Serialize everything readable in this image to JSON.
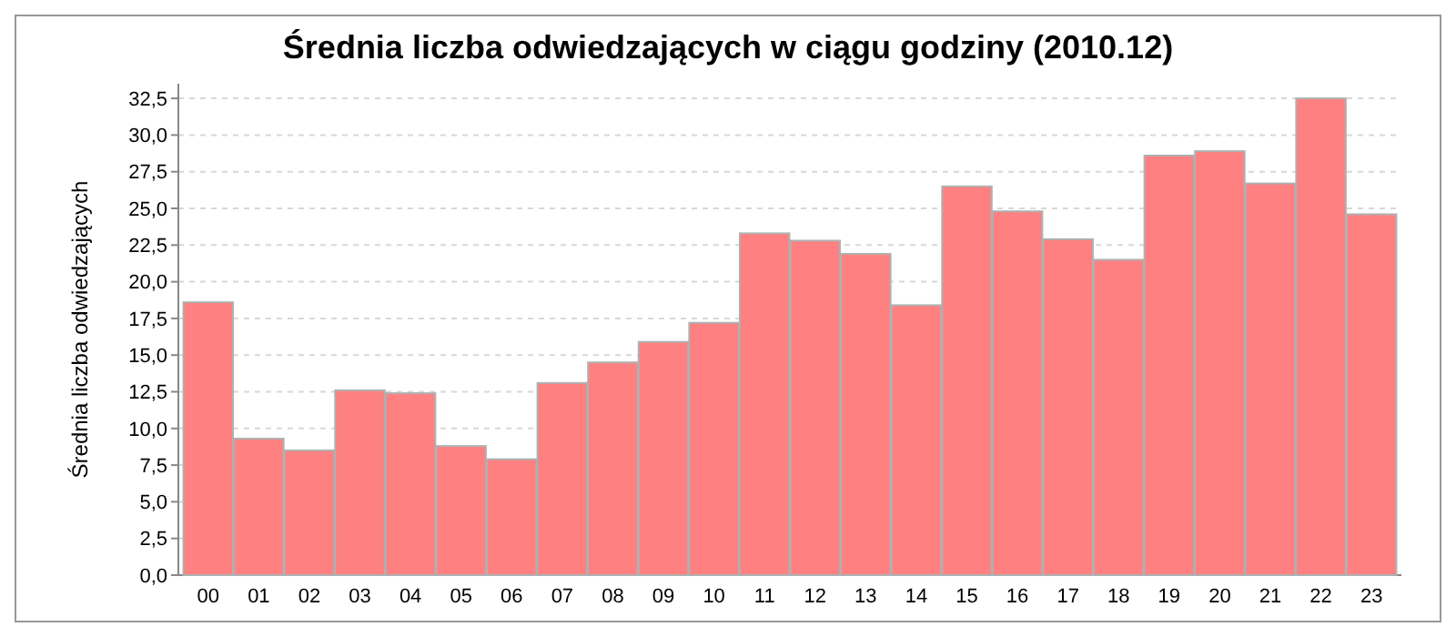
{
  "chart_data": {
    "type": "bar",
    "title": "Średnia liczba odwiedzających w ciągu godziny (2010.12)",
    "ylabel": "Średnia liczba odwiedzających",
    "categories": [
      "00",
      "01",
      "02",
      "03",
      "04",
      "05",
      "06",
      "07",
      "08",
      "09",
      "10",
      "11",
      "12",
      "13",
      "14",
      "15",
      "16",
      "17",
      "18",
      "19",
      "20",
      "21",
      "22",
      "23"
    ],
    "values": [
      18.6,
      9.3,
      8.5,
      12.6,
      12.4,
      8.8,
      7.9,
      13.1,
      14.5,
      15.9,
      17.2,
      23.3,
      22.8,
      21.9,
      18.4,
      26.5,
      24.8,
      22.9,
      21.5,
      28.6,
      28.9,
      26.7,
      32.5,
      24.6
    ],
    "color": "#ff8080",
    "ylim": [
      0,
      33.5
    ],
    "yticks": [
      {
        "value": 0,
        "label": "0,0"
      },
      {
        "value": 2.5,
        "label": "2,5"
      },
      {
        "value": 5,
        "label": "5,0"
      },
      {
        "value": 7.5,
        "label": "7,5"
      },
      {
        "value": 10,
        "label": "10,0"
      },
      {
        "value": 12.5,
        "label": "12,5"
      },
      {
        "value": 15,
        "label": "15,0"
      },
      {
        "value": 17.5,
        "label": "17,5"
      },
      {
        "value": 20,
        "label": "20,0"
      },
      {
        "value": 22.5,
        "label": "22,5"
      },
      {
        "value": 25,
        "label": "25,0"
      },
      {
        "value": 27.5,
        "label": "27,5"
      },
      {
        "value": 30,
        "label": "30,0"
      },
      {
        "value": 32.5,
        "label": "32,5"
      }
    ],
    "grid": "y"
  }
}
